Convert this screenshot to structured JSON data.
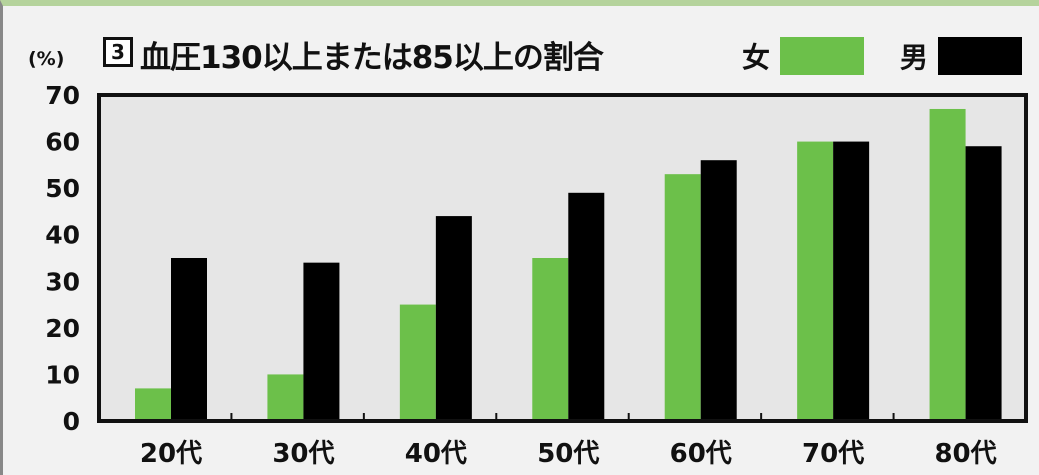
{
  "chart_data": {
    "type": "bar",
    "figure_number": "3",
    "title": "血圧130以上または85以上の割合",
    "ylabel": "(%)",
    "xlabel": "",
    "categories": [
      "20代",
      "30代",
      "40代",
      "50代",
      "60代",
      "70代",
      "80代"
    ],
    "series": [
      {
        "name": "女",
        "color": "#6cc04a",
        "values": [
          7,
          10,
          25,
          35,
          53,
          60,
          67
        ]
      },
      {
        "name": "男",
        "color": "#000000",
        "values": [
          35,
          34,
          44,
          49,
          56,
          60,
          59
        ]
      }
    ],
    "ylim": [
      0,
      70
    ],
    "yticks": [
      0,
      10,
      20,
      30,
      40,
      50,
      60,
      70
    ],
    "grid": false,
    "legend_position": "top-right"
  }
}
